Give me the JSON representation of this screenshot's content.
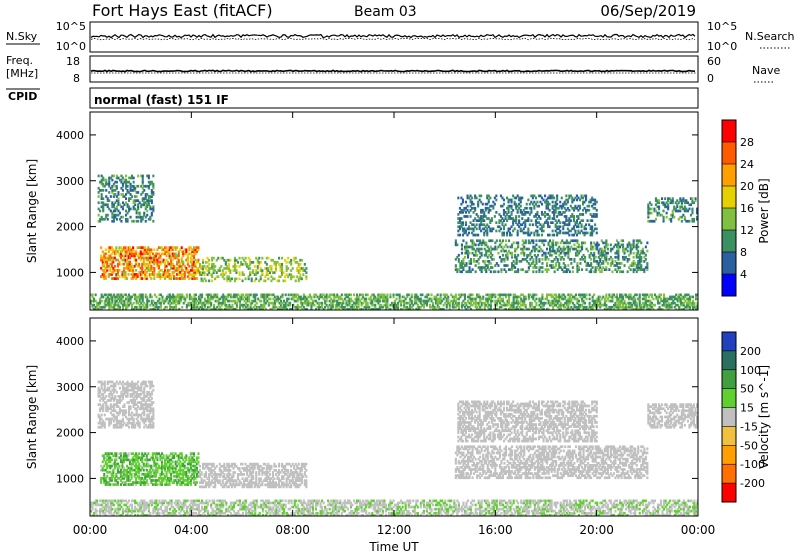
{
  "header": {
    "station": "Fort Hays East (fitACF)",
    "beam": "Beam 03",
    "date": "06/Sep/2019"
  },
  "strips": {
    "noise_left_label": "N.Sky",
    "noise_left_ticks": [
      "10^5",
      "10^0"
    ],
    "noise_right_label": "N.Search",
    "noise_right_ticks": [
      "10^5",
      "10^0"
    ],
    "freq_left_label_1": "Freq.",
    "freq_left_label_2": "[MHz]",
    "freq_left_ticks": [
      "18",
      "8"
    ],
    "freq_right_ticks": [
      "60",
      "0"
    ],
    "nave_label": "Nave",
    "cpid_label": "CPID",
    "cpid_text": "normal (fast) 151 IF"
  },
  "chart_data": [
    {
      "type": "heatmap",
      "panel": "power",
      "ylabel": "Slant Range [km]",
      "x_ticks": [
        "00:00",
        "04:00",
        "08:00",
        "12:00",
        "16:00",
        "20:00",
        "00:00"
      ],
      "xlim_hours": [
        0,
        24
      ],
      "ylim_km": [
        180,
        4500
      ],
      "y_ticks": [
        1000,
        2000,
        3000,
        4000
      ],
      "colorbar": {
        "label": "Power [dB]",
        "ticks": [
          "28",
          "24",
          "20",
          "16",
          "12",
          "8",
          "4"
        ],
        "colors": [
          "#ff0000",
          "#ff5a00",
          "#ffa000",
          "#e6d000",
          "#80c040",
          "#3a9060",
          "#2a60a0",
          "#0000ff"
        ]
      },
      "regions": [
        {
          "t": [
            0.4,
            4.3
          ],
          "r": [
            850,
            1550
          ],
          "v": 22
        },
        {
          "t": [
            4.3,
            8.5
          ],
          "r": [
            800,
            1300
          ],
          "v": 14
        },
        {
          "t": [
            0.3,
            2.5
          ],
          "r": [
            2100,
            3100
          ],
          "v": 9
        },
        {
          "t": [
            14.4,
            22.0
          ],
          "r": [
            1000,
            1700
          ],
          "v": 10
        },
        {
          "t": [
            14.5,
            20.0
          ],
          "r": [
            1800,
            2700
          ],
          "v": 8
        },
        {
          "t": [
            22.0,
            24.0
          ],
          "r": [
            2100,
            2600
          ],
          "v": 9
        },
        {
          "t": [
            0,
            24
          ],
          "r": [
            180,
            500
          ],
          "v": 12
        }
      ]
    },
    {
      "type": "heatmap",
      "panel": "velocity",
      "ylabel": "Slant Range [km]",
      "xlabel": "Time UT",
      "x_ticks": [
        "00:00",
        "04:00",
        "08:00",
        "12:00",
        "16:00",
        "20:00",
        "00:00"
      ],
      "xlim_hours": [
        0,
        24
      ],
      "ylim_km": [
        180,
        4500
      ],
      "y_ticks": [
        1000,
        2000,
        3000,
        4000
      ],
      "colorbar": {
        "label": "Velocity [m s^-1]",
        "ticks": [
          "200",
          "100",
          "50",
          "15",
          "-15",
          "-50",
          "-100",
          "-200"
        ],
        "colors": [
          "#2040c0",
          "#2a7060",
          "#40a040",
          "#60d030",
          "#c0c0c0",
          "#f0c040",
          "#ffa000",
          "#ff7000",
          "#ff0000"
        ]
      },
      "regions": [
        {
          "t": [
            0.4,
            4.3
          ],
          "r": [
            850,
            1550
          ],
          "v": 40
        },
        {
          "t": [
            4.3,
            8.5
          ],
          "r": [
            800,
            1300
          ],
          "v": 0
        },
        {
          "t": [
            0.3,
            2.5
          ],
          "r": [
            2100,
            3100
          ],
          "v": 0
        },
        {
          "t": [
            14.4,
            22.0
          ],
          "r": [
            1000,
            1700
          ],
          "v": 0
        },
        {
          "t": [
            14.5,
            20.0
          ],
          "r": [
            1800,
            2700
          ],
          "v": 0
        },
        {
          "t": [
            22.0,
            24.0
          ],
          "r": [
            2100,
            2600
          ],
          "v": 0
        },
        {
          "t": [
            0,
            24
          ],
          "r": [
            180,
            500
          ],
          "v": 10
        }
      ]
    }
  ]
}
